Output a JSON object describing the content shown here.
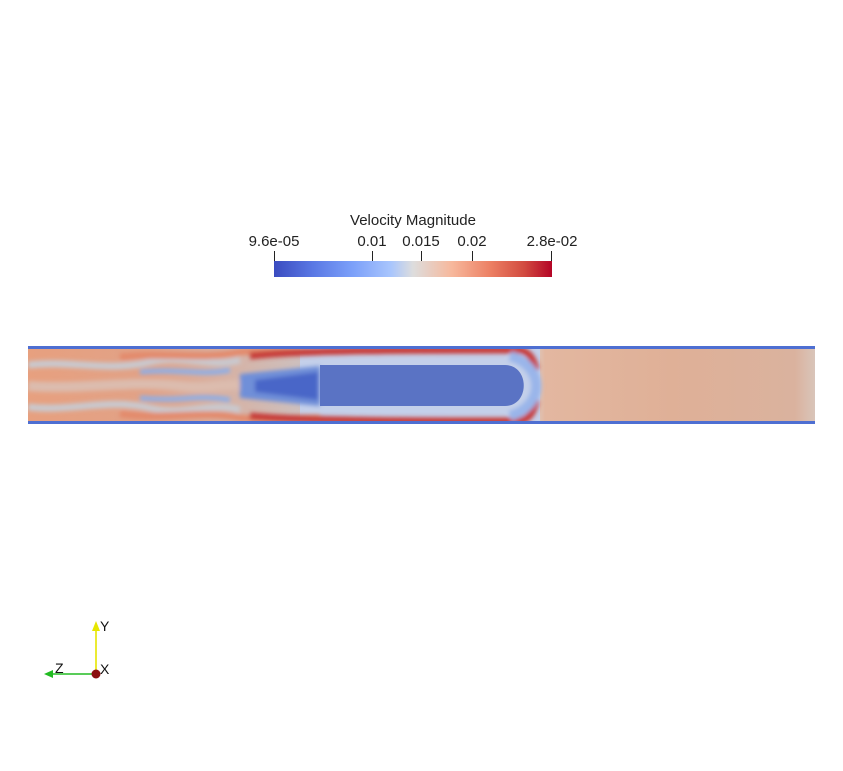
{
  "colorbar": {
    "title": "Velocity Magnitude",
    "min_label": "9.6e-05",
    "max_label": "2.8e-02",
    "ticks": [
      "0.01",
      "0.015",
      "0.02"
    ],
    "colors": [
      "#3b4cc0",
      "#dddddd",
      "#b40426"
    ]
  },
  "orientation_axes": {
    "y_label": "Y",
    "z_label": "Z",
    "x_label": "X",
    "y_color": "#e6e600",
    "z_color": "#22bb22",
    "x_color": "#8b1010"
  }
}
